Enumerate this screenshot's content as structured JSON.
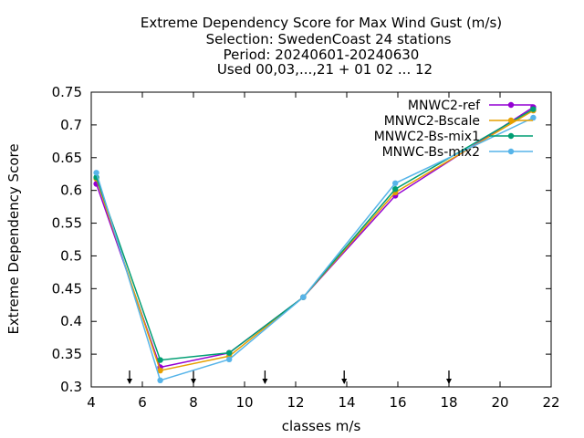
{
  "chart_data": {
    "type": "line",
    "title_lines": [
      "Extreme Dependency Score  for Max Wind Gust (m/s)",
      "Selection: SwedenCoast     24 stations",
      "Period: 20240601-20240630",
      "Used 00,03,...,21 + 01 02 ... 12"
    ],
    "xlabel": "classes m/s",
    "ylabel": "Extreme Dependency Score",
    "xlim": [
      4,
      22
    ],
    "ylim": [
      0.3,
      0.75
    ],
    "xticks": [
      "4",
      "6",
      "8",
      "10",
      "12",
      "14",
      "16",
      "18",
      "20",
      "22"
    ],
    "yticks": [
      "0.3",
      "0.35",
      "0.4",
      "0.45",
      "0.5",
      "0.55",
      "0.6",
      "0.65",
      "0.7",
      "0.75"
    ],
    "class_markers_x": [
      5.5,
      8,
      10.8,
      13.9,
      18
    ],
    "legend_position": "top-right",
    "series": [
      {
        "name": "MNWC2-ref",
        "color": "#9400d3",
        "x": [
          4.2,
          6.7,
          9.4,
          12.3,
          15.9,
          21.3
        ],
        "y": [
          0.61,
          0.33,
          0.352,
          0.437,
          0.592,
          0.727
        ]
      },
      {
        "name": "MNWC2-Bscale",
        "color": "#e69f00",
        "x": [
          4.2,
          6.7,
          9.4,
          12.3,
          15.9,
          21.3
        ],
        "y": [
          0.618,
          0.325,
          0.347,
          0.437,
          0.597,
          0.722
        ]
      },
      {
        "name": "MNWC2-Bs-mix1",
        "color": "#009e73",
        "x": [
          4.2,
          6.7,
          9.4,
          12.3,
          15.9,
          21.3
        ],
        "y": [
          0.62,
          0.341,
          0.352,
          0.437,
          0.602,
          0.724
        ]
      },
      {
        "name": "MNWC-Bs-mix2",
        "color": "#56b4e9",
        "x": [
          4.2,
          6.7,
          9.4,
          12.3,
          15.9,
          21.3
        ],
        "y": [
          0.627,
          0.31,
          0.342,
          0.437,
          0.611,
          0.711
        ]
      }
    ]
  }
}
